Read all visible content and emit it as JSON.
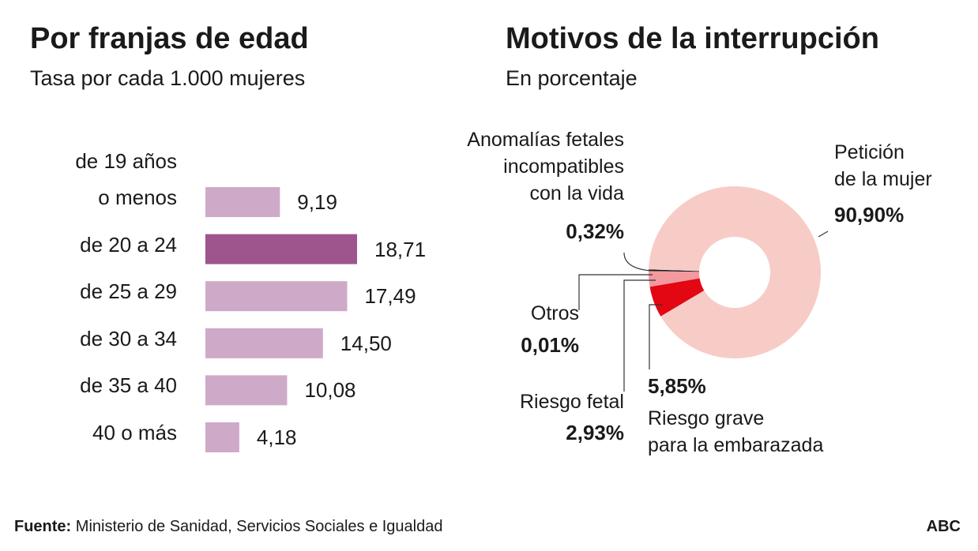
{
  "chart_data": [
    {
      "type": "bar",
      "orientation": "horizontal",
      "title": "Por franjas de edad",
      "subtitle": "Tasa por cada 1.000 mujeres",
      "categories": [
        "de 19 años\no menos",
        "de 20 a 24",
        "de 25 a 29",
        "de 30 a 34",
        "de 35 a 40",
        "40 o más"
      ],
      "values": [
        9.19,
        18.71,
        17.49,
        14.5,
        10.08,
        4.18
      ],
      "value_labels": [
        "9,19",
        "18,71",
        "17,49",
        "14,50",
        "10,08",
        "4,18"
      ],
      "colors": [
        "#cfaac8",
        "#9e558e",
        "#cfaac8",
        "#cfaac8",
        "#cfaac8",
        "#cfaac8"
      ]
    },
    {
      "type": "donut",
      "title": "Motivos de la interrupción",
      "subtitle": "En porcentaje",
      "labels": [
        "Anomalías fetales\nincompatibles\ncon la vida",
        "Otros",
        "Riesgo fetal",
        "Riesgo grave\npara la embarazada",
        "Petición\nde la mujer"
      ],
      "values": [
        0.32,
        0.01,
        2.93,
        5.85,
        90.9
      ],
      "value_labels": [
        "0,32%",
        "0,01%",
        "2,93%",
        "5,85%",
        "90,90%"
      ],
      "colors": [
        "#1a1a1a",
        "#bbbbbb",
        "#f29a9e",
        "#e30613",
        "#f8ccc6"
      ]
    }
  ],
  "footer": {
    "source_label": "Fuente:",
    "source": "Ministerio de Sanidad, Servicios Sociales e Igualdad",
    "brand": "ABC"
  }
}
